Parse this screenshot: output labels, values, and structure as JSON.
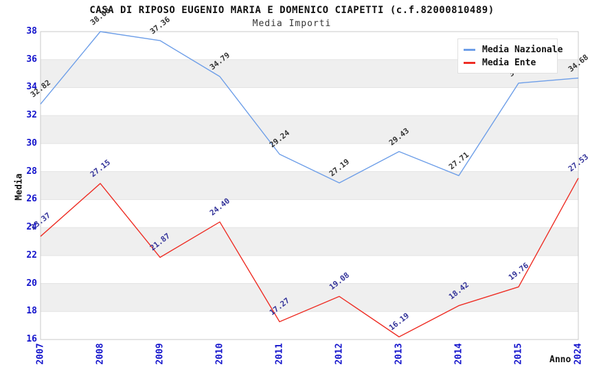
{
  "chart_data": {
    "type": "line",
    "title": "CASA DI RIPOSO EUGENIO MARIA E DOMENICO CIAPETTI (c.f.82000810489)",
    "subtitle": "Media Importi",
    "xlabel": "Anno",
    "ylabel": "Media",
    "categories": [
      "2007",
      "2008",
      "2009",
      "2010",
      "2011",
      "2012",
      "2013",
      "2014",
      "2015",
      "2024"
    ],
    "series": [
      {
        "name": "Media Nazionale",
        "color": "#6d9ee8",
        "label_color": "#333333",
        "values": [
          32.82,
          38.0,
          37.36,
          34.79,
          29.24,
          27.19,
          29.43,
          27.71,
          34.32,
          34.68
        ]
      },
      {
        "name": "Media Ente",
        "color": "#ee2d24",
        "label_color": "#333399",
        "values": [
          23.37,
          27.15,
          21.87,
          24.4,
          17.27,
          19.08,
          16.19,
          18.42,
          19.76,
          27.53
        ]
      }
    ],
    "ylim": [
      16,
      38
    ],
    "ytick_step": 2,
    "grid": "banded",
    "band_color": "#efefef",
    "gridline_color": "#e3e3e3",
    "plot_border_color": "#c9c9c9",
    "axis_tick_color": "#1414cc",
    "legend_position": "top-right"
  }
}
